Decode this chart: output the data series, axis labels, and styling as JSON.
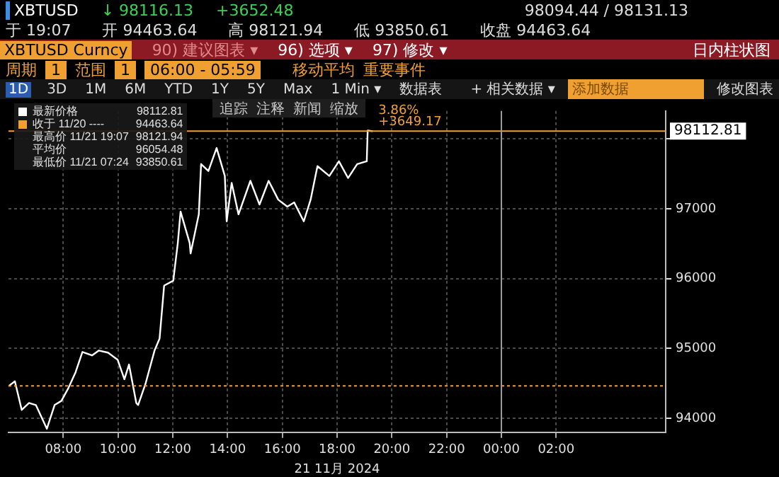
{
  "chart_data": {
    "type": "line",
    "title": "XBTUSD",
    "xlabel": "21 11月 2024",
    "annotations": [
      "↓ 98116.13",
      "+3652.48",
      "98094.44 / 98131.13",
      "于 19:07",
      "开 94463.64",
      "高 98121.94",
      "低 93850.61",
      "收盘 94463.64",
      "XBTUSD Curncy",
      "90) 建议图表 ▾",
      "96) 选项 ▾",
      "97) 修改 ▾",
      "日内柱状图",
      "周期",
      "1",
      "范围",
      "1",
      "06:00 - 05:59",
      "移动平均",
      "重要事件",
      "1D",
      "3D",
      "1M",
      "6M",
      "YTD",
      "1Y",
      "5Y",
      "Max",
      "1 Min ▾",
      "数据表",
      "+ 相关数据 ▾",
      "添加数据",
      "修改图表",
      "追踪",
      "注释",
      "新闻",
      "缩放",
      "98112.81",
      "收于 11/20 ----",
      "94463.64",
      "最高价 11/21 19:07",
      "98121.94",
      "平均价",
      "96054.48",
      "最低价 11/21 07:24",
      "93850.61",
      "3.86%",
      "+3649.17"
    ],
    "x": [
      "2024-11-21T06:00",
      "2024-11-21T06:14",
      "2024-11-21T06:29",
      "2024-11-21T06:45",
      "2024-11-21T07:00",
      "2024-11-21T07:24",
      "2024-11-21T07:41",
      "2024-11-21T07:56",
      "2024-11-21T08:11",
      "2024-11-21T08:27",
      "2024-11-21T08:42",
      "2024-11-21T09:03",
      "2024-11-21T09:18",
      "2024-11-21T09:38",
      "2024-11-21T09:59",
      "2024-11-21T10:14",
      "2024-11-21T10:24",
      "2024-11-21T10:40",
      "2024-11-21T10:44",
      "2024-11-21T11:00",
      "2024-11-21T11:20",
      "2024-11-21T11:31",
      "2024-11-21T11:41",
      "2024-11-21T12:01",
      "2024-11-21T12:11",
      "2024-11-21T12:17",
      "2024-11-21T12:37",
      "2024-11-21T12:39",
      "2024-11-21T12:57",
      "2024-11-21T13:02",
      "2024-11-21T13:18",
      "2024-11-21T13:36",
      "2024-11-21T13:54",
      "2024-11-21T13:58",
      "2024-11-21T14:09",
      "2024-11-21T14:24",
      "2024-11-21T14:50",
      "2024-11-21T15:10",
      "2024-11-21T15:30",
      "2024-11-21T15:51",
      "2024-11-21T16:11",
      "2024-11-21T16:26",
      "2024-11-21T16:47",
      "2024-11-21T17:02",
      "2024-11-21T17:17",
      "2024-11-21T17:43",
      "2024-11-21T18:04",
      "2024-11-21T18:24",
      "2024-11-21T18:44",
      "2024-11-21T19:05",
      "2024-11-21T19:07",
      "2024-11-21T19:18"
    ],
    "series": [
      {
        "name": "最新价格",
        "color": "#ffffff",
        "values": [
          94460,
          94530,
          94120,
          94220,
          94190,
          93850,
          94190,
          94250,
          94430,
          94660,
          94950,
          94900,
          94970,
          94940,
          94840,
          94560,
          94770,
          94220,
          94190,
          94490,
          94970,
          95140,
          95900,
          95970,
          96510,
          96960,
          96510,
          96360,
          96920,
          97640,
          97540,
          97870,
          97470,
          96820,
          97370,
          96920,
          97400,
          97060,
          97400,
          97130,
          97030,
          97090,
          96820,
          97130,
          97610,
          97470,
          97680,
          97440,
          97640,
          97680,
          98120,
          98110
        ]
      }
    ],
    "xlim": [
      "2024-11-21T06:00",
      "2024-11-22T06:00"
    ],
    "xticks": [
      {
        "value": "2024-11-21T08:00",
        "label": "08:00"
      },
      {
        "value": "2024-11-21T10:00",
        "label": "10:00"
      },
      {
        "value": "2024-11-21T12:00",
        "label": "12:00"
      },
      {
        "value": "2024-11-21T14:00",
        "label": "14:00"
      },
      {
        "value": "2024-11-21T16:00",
        "label": "16:00"
      },
      {
        "value": "2024-11-21T18:00",
        "label": "18:00"
      },
      {
        "value": "2024-11-21T20:00",
        "label": "20:00"
      },
      {
        "value": "2024-11-21T22:00",
        "label": "22:00"
      },
      {
        "value": "2024-11-22T00:00",
        "label": "00:00"
      },
      {
        "value": "2024-11-22T02:00",
        "label": "02:00"
      }
    ],
    "ylim": [
      93800,
      98400
    ],
    "yticks": [
      94000,
      95000,
      96000,
      97000,
      {
        "value": 98000,
        "label": null
      }
    ],
    "grid": true,
    "legend": "top left",
    "marker": "none",
    "line_style": "solid",
    "ref_lines": [
      {
        "axis": "y",
        "value": 98112.81,
        "label": "98112.81",
        "color": "#f0a030",
        "line_style": "solid"
      },
      {
        "axis": "y",
        "value": 94463.64,
        "color": "#f0a030",
        "line_style": "dotted"
      },
      {
        "axis": "x",
        "value": "2024-11-22T00:00",
        "color": "#9a9a9a",
        "line_style": "solid"
      }
    ]
  }
}
